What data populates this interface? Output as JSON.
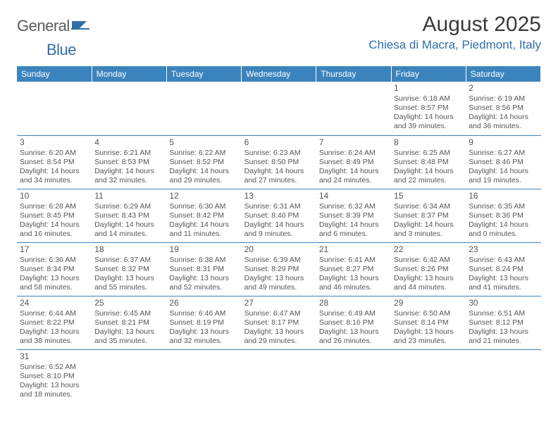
{
  "logo": {
    "text1": "General",
    "text2": "Blue"
  },
  "title": "August 2025",
  "location": "Chiesa di Macra, Piedmont, Italy",
  "headers": [
    "Sunday",
    "Monday",
    "Tuesday",
    "Wednesday",
    "Thursday",
    "Friday",
    "Saturday"
  ],
  "colors": {
    "header_bg": "#3b83bd",
    "accent": "#2f6fa8",
    "text": "#3a3a3a"
  },
  "weeks": [
    [
      null,
      null,
      null,
      null,
      null,
      {
        "day": "1",
        "sunrise": "Sunrise: 6:18 AM",
        "sunset": "Sunset: 8:57 PM",
        "daylight1": "Daylight: 14 hours",
        "daylight2": "and 39 minutes."
      },
      {
        "day": "2",
        "sunrise": "Sunrise: 6:19 AM",
        "sunset": "Sunset: 8:56 PM",
        "daylight1": "Daylight: 14 hours",
        "daylight2": "and 36 minutes."
      }
    ],
    [
      {
        "day": "3",
        "sunrise": "Sunrise: 6:20 AM",
        "sunset": "Sunset: 8:54 PM",
        "daylight1": "Daylight: 14 hours",
        "daylight2": "and 34 minutes."
      },
      {
        "day": "4",
        "sunrise": "Sunrise: 6:21 AM",
        "sunset": "Sunset: 8:53 PM",
        "daylight1": "Daylight: 14 hours",
        "daylight2": "and 32 minutes."
      },
      {
        "day": "5",
        "sunrise": "Sunrise: 6:22 AM",
        "sunset": "Sunset: 8:52 PM",
        "daylight1": "Daylight: 14 hours",
        "daylight2": "and 29 minutes."
      },
      {
        "day": "6",
        "sunrise": "Sunrise: 6:23 AM",
        "sunset": "Sunset: 8:50 PM",
        "daylight1": "Daylight: 14 hours",
        "daylight2": "and 27 minutes."
      },
      {
        "day": "7",
        "sunrise": "Sunrise: 6:24 AM",
        "sunset": "Sunset: 8:49 PM",
        "daylight1": "Daylight: 14 hours",
        "daylight2": "and 24 minutes."
      },
      {
        "day": "8",
        "sunrise": "Sunrise: 6:25 AM",
        "sunset": "Sunset: 8:48 PM",
        "daylight1": "Daylight: 14 hours",
        "daylight2": "and 22 minutes."
      },
      {
        "day": "9",
        "sunrise": "Sunrise: 6:27 AM",
        "sunset": "Sunset: 8:46 PM",
        "daylight1": "Daylight: 14 hours",
        "daylight2": "and 19 minutes."
      }
    ],
    [
      {
        "day": "10",
        "sunrise": "Sunrise: 6:28 AM",
        "sunset": "Sunset: 8:45 PM",
        "daylight1": "Daylight: 14 hours",
        "daylight2": "and 16 minutes."
      },
      {
        "day": "11",
        "sunrise": "Sunrise: 6:29 AM",
        "sunset": "Sunset: 8:43 PM",
        "daylight1": "Daylight: 14 hours",
        "daylight2": "and 14 minutes."
      },
      {
        "day": "12",
        "sunrise": "Sunrise: 6:30 AM",
        "sunset": "Sunset: 8:42 PM",
        "daylight1": "Daylight: 14 hours",
        "daylight2": "and 11 minutes."
      },
      {
        "day": "13",
        "sunrise": "Sunrise: 6:31 AM",
        "sunset": "Sunset: 8:40 PM",
        "daylight1": "Daylight: 14 hours",
        "daylight2": "and 9 minutes."
      },
      {
        "day": "14",
        "sunrise": "Sunrise: 6:32 AM",
        "sunset": "Sunset: 8:39 PM",
        "daylight1": "Daylight: 14 hours",
        "daylight2": "and 6 minutes."
      },
      {
        "day": "15",
        "sunrise": "Sunrise: 6:34 AM",
        "sunset": "Sunset: 8:37 PM",
        "daylight1": "Daylight: 14 hours",
        "daylight2": "and 3 minutes."
      },
      {
        "day": "16",
        "sunrise": "Sunrise: 6:35 AM",
        "sunset": "Sunset: 8:36 PM",
        "daylight1": "Daylight: 14 hours",
        "daylight2": "and 0 minutes."
      }
    ],
    [
      {
        "day": "17",
        "sunrise": "Sunrise: 6:36 AM",
        "sunset": "Sunset: 8:34 PM",
        "daylight1": "Daylight: 13 hours",
        "daylight2": "and 58 minutes."
      },
      {
        "day": "18",
        "sunrise": "Sunrise: 6:37 AM",
        "sunset": "Sunset: 8:32 PM",
        "daylight1": "Daylight: 13 hours",
        "daylight2": "and 55 minutes."
      },
      {
        "day": "19",
        "sunrise": "Sunrise: 6:38 AM",
        "sunset": "Sunset: 8:31 PM",
        "daylight1": "Daylight: 13 hours",
        "daylight2": "and 52 minutes."
      },
      {
        "day": "20",
        "sunrise": "Sunrise: 6:39 AM",
        "sunset": "Sunset: 8:29 PM",
        "daylight1": "Daylight: 13 hours",
        "daylight2": "and 49 minutes."
      },
      {
        "day": "21",
        "sunrise": "Sunrise: 6:41 AM",
        "sunset": "Sunset: 8:27 PM",
        "daylight1": "Daylight: 13 hours",
        "daylight2": "and 46 minutes."
      },
      {
        "day": "22",
        "sunrise": "Sunrise: 6:42 AM",
        "sunset": "Sunset: 8:26 PM",
        "daylight1": "Daylight: 13 hours",
        "daylight2": "and 44 minutes."
      },
      {
        "day": "23",
        "sunrise": "Sunrise: 6:43 AM",
        "sunset": "Sunset: 8:24 PM",
        "daylight1": "Daylight: 13 hours",
        "daylight2": "and 41 minutes."
      }
    ],
    [
      {
        "day": "24",
        "sunrise": "Sunrise: 6:44 AM",
        "sunset": "Sunset: 8:22 PM",
        "daylight1": "Daylight: 13 hours",
        "daylight2": "and 38 minutes."
      },
      {
        "day": "25",
        "sunrise": "Sunrise: 6:45 AM",
        "sunset": "Sunset: 8:21 PM",
        "daylight1": "Daylight: 13 hours",
        "daylight2": "and 35 minutes."
      },
      {
        "day": "26",
        "sunrise": "Sunrise: 6:46 AM",
        "sunset": "Sunset: 8:19 PM",
        "daylight1": "Daylight: 13 hours",
        "daylight2": "and 32 minutes."
      },
      {
        "day": "27",
        "sunrise": "Sunrise: 6:47 AM",
        "sunset": "Sunset: 8:17 PM",
        "daylight1": "Daylight: 13 hours",
        "daylight2": "and 29 minutes."
      },
      {
        "day": "28",
        "sunrise": "Sunrise: 6:49 AM",
        "sunset": "Sunset: 8:16 PM",
        "daylight1": "Daylight: 13 hours",
        "daylight2": "and 26 minutes."
      },
      {
        "day": "29",
        "sunrise": "Sunrise: 6:50 AM",
        "sunset": "Sunset: 8:14 PM",
        "daylight1": "Daylight: 13 hours",
        "daylight2": "and 23 minutes."
      },
      {
        "day": "30",
        "sunrise": "Sunrise: 6:51 AM",
        "sunset": "Sunset: 8:12 PM",
        "daylight1": "Daylight: 13 hours",
        "daylight2": "and 21 minutes."
      }
    ],
    [
      {
        "day": "31",
        "sunrise": "Sunrise: 6:52 AM",
        "sunset": "Sunset: 8:10 PM",
        "daylight1": "Daylight: 13 hours",
        "daylight2": "and 18 minutes."
      },
      null,
      null,
      null,
      null,
      null,
      null
    ]
  ]
}
